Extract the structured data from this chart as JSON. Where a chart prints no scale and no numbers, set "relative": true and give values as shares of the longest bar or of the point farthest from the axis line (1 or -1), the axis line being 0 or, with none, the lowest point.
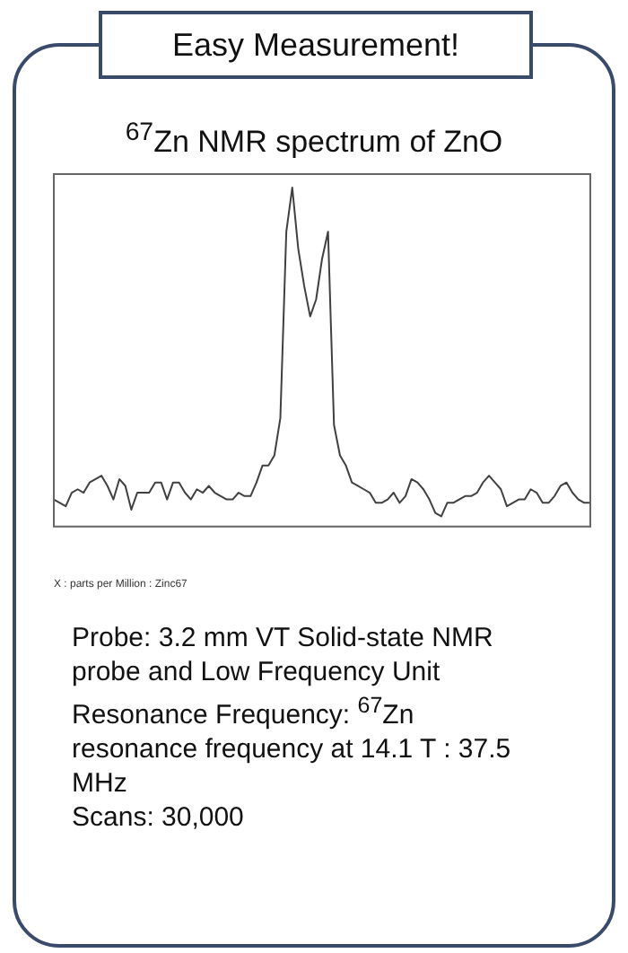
{
  "chart_data": {
    "type": "line",
    "title": "Easy Measurement!",
    "subtitle": "$^{67}$Zn NMR spectrum of ZnO",
    "xlabel": "X : parts per Million : Zinc67",
    "relative": true,
    "grid": false,
    "legend": false,
    "marker": "none",
    "line_style": "solid",
    "categories": [
      null,
      null,
      null,
      null,
      null,
      null,
      null,
      null,
      null,
      null,
      null,
      null,
      null,
      null,
      null,
      null,
      null,
      null,
      null,
      null,
      null,
      null,
      null,
      null,
      null,
      null,
      null,
      null,
      null,
      null,
      null,
      null,
      null,
      null,
      null,
      null,
      null,
      null,
      null,
      null,
      null,
      null,
      null,
      null,
      null,
      null,
      null,
      null,
      null,
      null,
      null,
      null,
      null,
      null,
      null,
      null,
      null,
      null,
      null,
      null,
      null,
      null,
      null,
      null,
      null,
      null,
      null,
      null,
      null,
      null,
      null,
      null,
      null,
      null,
      null,
      null,
      null,
      null,
      null,
      null,
      null,
      null,
      null,
      null,
      null,
      null,
      null,
      null,
      null,
      null,
      null
    ],
    "series": [
      {
        "color": "#404040",
        "values": [
          0.08,
          0.07,
          0.06,
          0.1,
          0.11,
          0.1,
          0.13,
          0.14,
          0.15,
          0.12,
          0.08,
          0.14,
          0.12,
          0.05,
          0.1,
          0.1,
          0.1,
          0.13,
          0.13,
          0.08,
          0.13,
          0.13,
          0.1,
          0.08,
          0.11,
          0.1,
          0.12,
          0.1,
          0.09,
          0.08,
          0.08,
          0.1,
          0.09,
          0.09,
          0.13,
          0.18,
          0.18,
          0.21,
          0.32,
          0.87,
          1,
          0.82,
          0.71,
          0.62,
          0.67,
          0.79,
          0.87,
          0.3,
          0.21,
          0.18,
          0.13,
          0.12,
          0.11,
          0.1,
          0.07,
          0.07,
          0.08,
          0.1,
          0.07,
          0.09,
          0.14,
          0.13,
          0.11,
          0.08,
          0.04,
          0.03,
          0.07,
          0.07,
          0.08,
          0.09,
          0.09,
          0.1,
          0.13,
          0.15,
          0.13,
          0.11,
          0.06,
          0.07,
          0.08,
          0.08,
          0.11,
          0.1,
          0.07,
          0.07,
          0.09,
          0.12,
          0.13,
          0.1,
          0.08,
          0.07,
          0.07
        ]
      }
    ],
    "annotations": [
      "Probe: 3.2 mm VT Solid-state NMR probe and Low Frequency Unit",
      "Resonance Frequency: $^{67}$Zn resonance frequency at 14.1 T : 37.5 MHz",
      "Scans: 30,000"
    ]
  }
}
